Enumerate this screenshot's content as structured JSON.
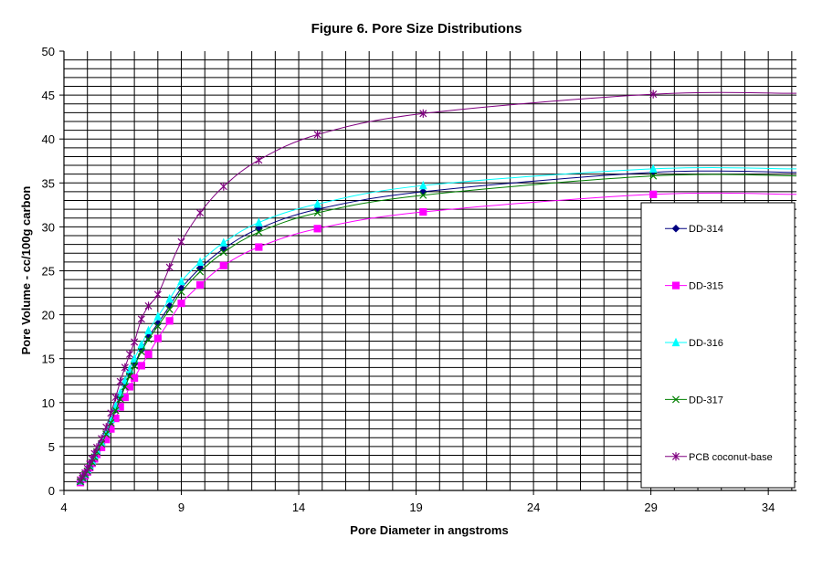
{
  "chart_data": {
    "type": "line",
    "title": "Figure 6. Pore Size Distributions",
    "xlabel": "Pore Diameter in angstroms",
    "ylabel": "Pore Volume - cc/100g carbon",
    "xlim": [
      4,
      35.2
    ],
    "ylim": [
      0,
      50
    ],
    "xticks": [
      4,
      9,
      14,
      19,
      24,
      29,
      34
    ],
    "yticks": [
      0,
      5,
      10,
      15,
      20,
      25,
      30,
      35,
      40,
      45,
      50
    ],
    "grid": true,
    "legend_position": "right",
    "series": [
      {
        "name": "DD-314",
        "marker": "diamond",
        "color": "#000080",
        "x": [
          4.7,
          4.8,
          4.9,
          5.0,
          5.1,
          5.2,
          5.3,
          5.4,
          5.6,
          5.8,
          6.0,
          6.2,
          6.4,
          6.6,
          6.8,
          7.0,
          7.3,
          7.6,
          8.0,
          8.5,
          9.0,
          9.8,
          10.8,
          12.3,
          14.8,
          19.3,
          29.1,
          35.2
        ],
        "y": [
          1.0,
          1.4,
          1.8,
          2.3,
          2.8,
          3.3,
          3.9,
          4.5,
          5.4,
          6.5,
          7.8,
          9.2,
          10.6,
          12.0,
          13.2,
          14.4,
          16.0,
          17.5,
          19.0,
          21.0,
          23.0,
          25.3,
          27.5,
          29.8,
          32.0,
          34.0,
          36.2,
          36.2
        ]
      },
      {
        "name": "DD-315",
        "marker": "square",
        "color": "#ff00ff",
        "x": [
          4.7,
          4.8,
          4.9,
          5.0,
          5.1,
          5.2,
          5.3,
          5.4,
          5.6,
          5.8,
          6.0,
          6.2,
          6.4,
          6.6,
          6.8,
          7.0,
          7.3,
          7.6,
          8.0,
          8.5,
          9.0,
          9.8,
          10.8,
          12.3,
          14.8,
          19.3,
          29.1,
          35.2
        ],
        "y": [
          0.9,
          1.3,
          1.7,
          2.1,
          2.6,
          3.1,
          3.6,
          4.1,
          4.9,
          5.8,
          7.0,
          8.2,
          9.5,
          10.6,
          11.8,
          12.8,
          14.2,
          15.5,
          17.3,
          19.3,
          21.3,
          23.4,
          25.6,
          27.7,
          29.8,
          31.7,
          33.7,
          33.7
        ]
      },
      {
        "name": "DD-316",
        "marker": "triangle",
        "color": "#00ffff",
        "x": [
          4.7,
          4.8,
          4.9,
          5.0,
          5.1,
          5.2,
          5.3,
          5.4,
          5.6,
          5.8,
          6.0,
          6.2,
          6.4,
          6.6,
          6.8,
          7.0,
          7.3,
          7.6,
          8.0,
          8.5,
          9.0,
          9.8,
          10.8,
          12.3,
          14.8,
          19.3,
          29.1,
          35.2
        ],
        "y": [
          1.1,
          1.5,
          1.9,
          2.4,
          2.9,
          3.4,
          4.0,
          4.6,
          5.5,
          6.7,
          8.1,
          9.6,
          11.1,
          12.5,
          13.8,
          15.0,
          16.6,
          18.2,
          19.8,
          21.8,
          23.8,
          26.0,
          28.2,
          30.5,
          32.6,
          34.7,
          36.6,
          36.6
        ]
      },
      {
        "name": "DD-317",
        "marker": "x",
        "color": "#008000",
        "x": [
          4.7,
          4.8,
          4.9,
          5.0,
          5.1,
          5.2,
          5.3,
          5.4,
          5.6,
          5.8,
          6.0,
          6.2,
          6.4,
          6.6,
          6.8,
          7.0,
          7.3,
          7.6,
          8.0,
          8.5,
          9.0,
          9.8,
          10.8,
          12.3,
          14.8,
          19.3,
          29.1,
          35.2
        ],
        "y": [
          1.0,
          1.4,
          1.8,
          2.2,
          2.7,
          3.2,
          3.8,
          4.4,
          5.3,
          6.4,
          7.7,
          9.1,
          10.4,
          11.8,
          13.0,
          14.2,
          15.8,
          17.2,
          18.7,
          20.6,
          22.6,
          24.9,
          27.1,
          29.4,
          31.6,
          33.6,
          35.8,
          35.8
        ]
      },
      {
        "name": "PCB coconut-base",
        "marker": "star",
        "color": "#800080",
        "x": [
          4.7,
          4.8,
          4.9,
          5.0,
          5.1,
          5.2,
          5.3,
          5.4,
          5.6,
          5.8,
          6.0,
          6.2,
          6.4,
          6.6,
          6.8,
          7.0,
          7.3,
          7.6,
          8.0,
          8.5,
          9.0,
          9.8,
          10.8,
          12.3,
          14.8,
          19.3,
          29.1,
          35.2
        ],
        "y": [
          1.2,
          1.6,
          2.0,
          2.5,
          3.0,
          3.6,
          4.2,
          4.9,
          5.9,
          7.2,
          8.8,
          10.6,
          12.4,
          14.0,
          15.5,
          16.9,
          19.5,
          21.0,
          22.3,
          25.4,
          28.3,
          31.6,
          34.6,
          37.6,
          40.5,
          42.9,
          45.1,
          45.2
        ]
      }
    ]
  }
}
